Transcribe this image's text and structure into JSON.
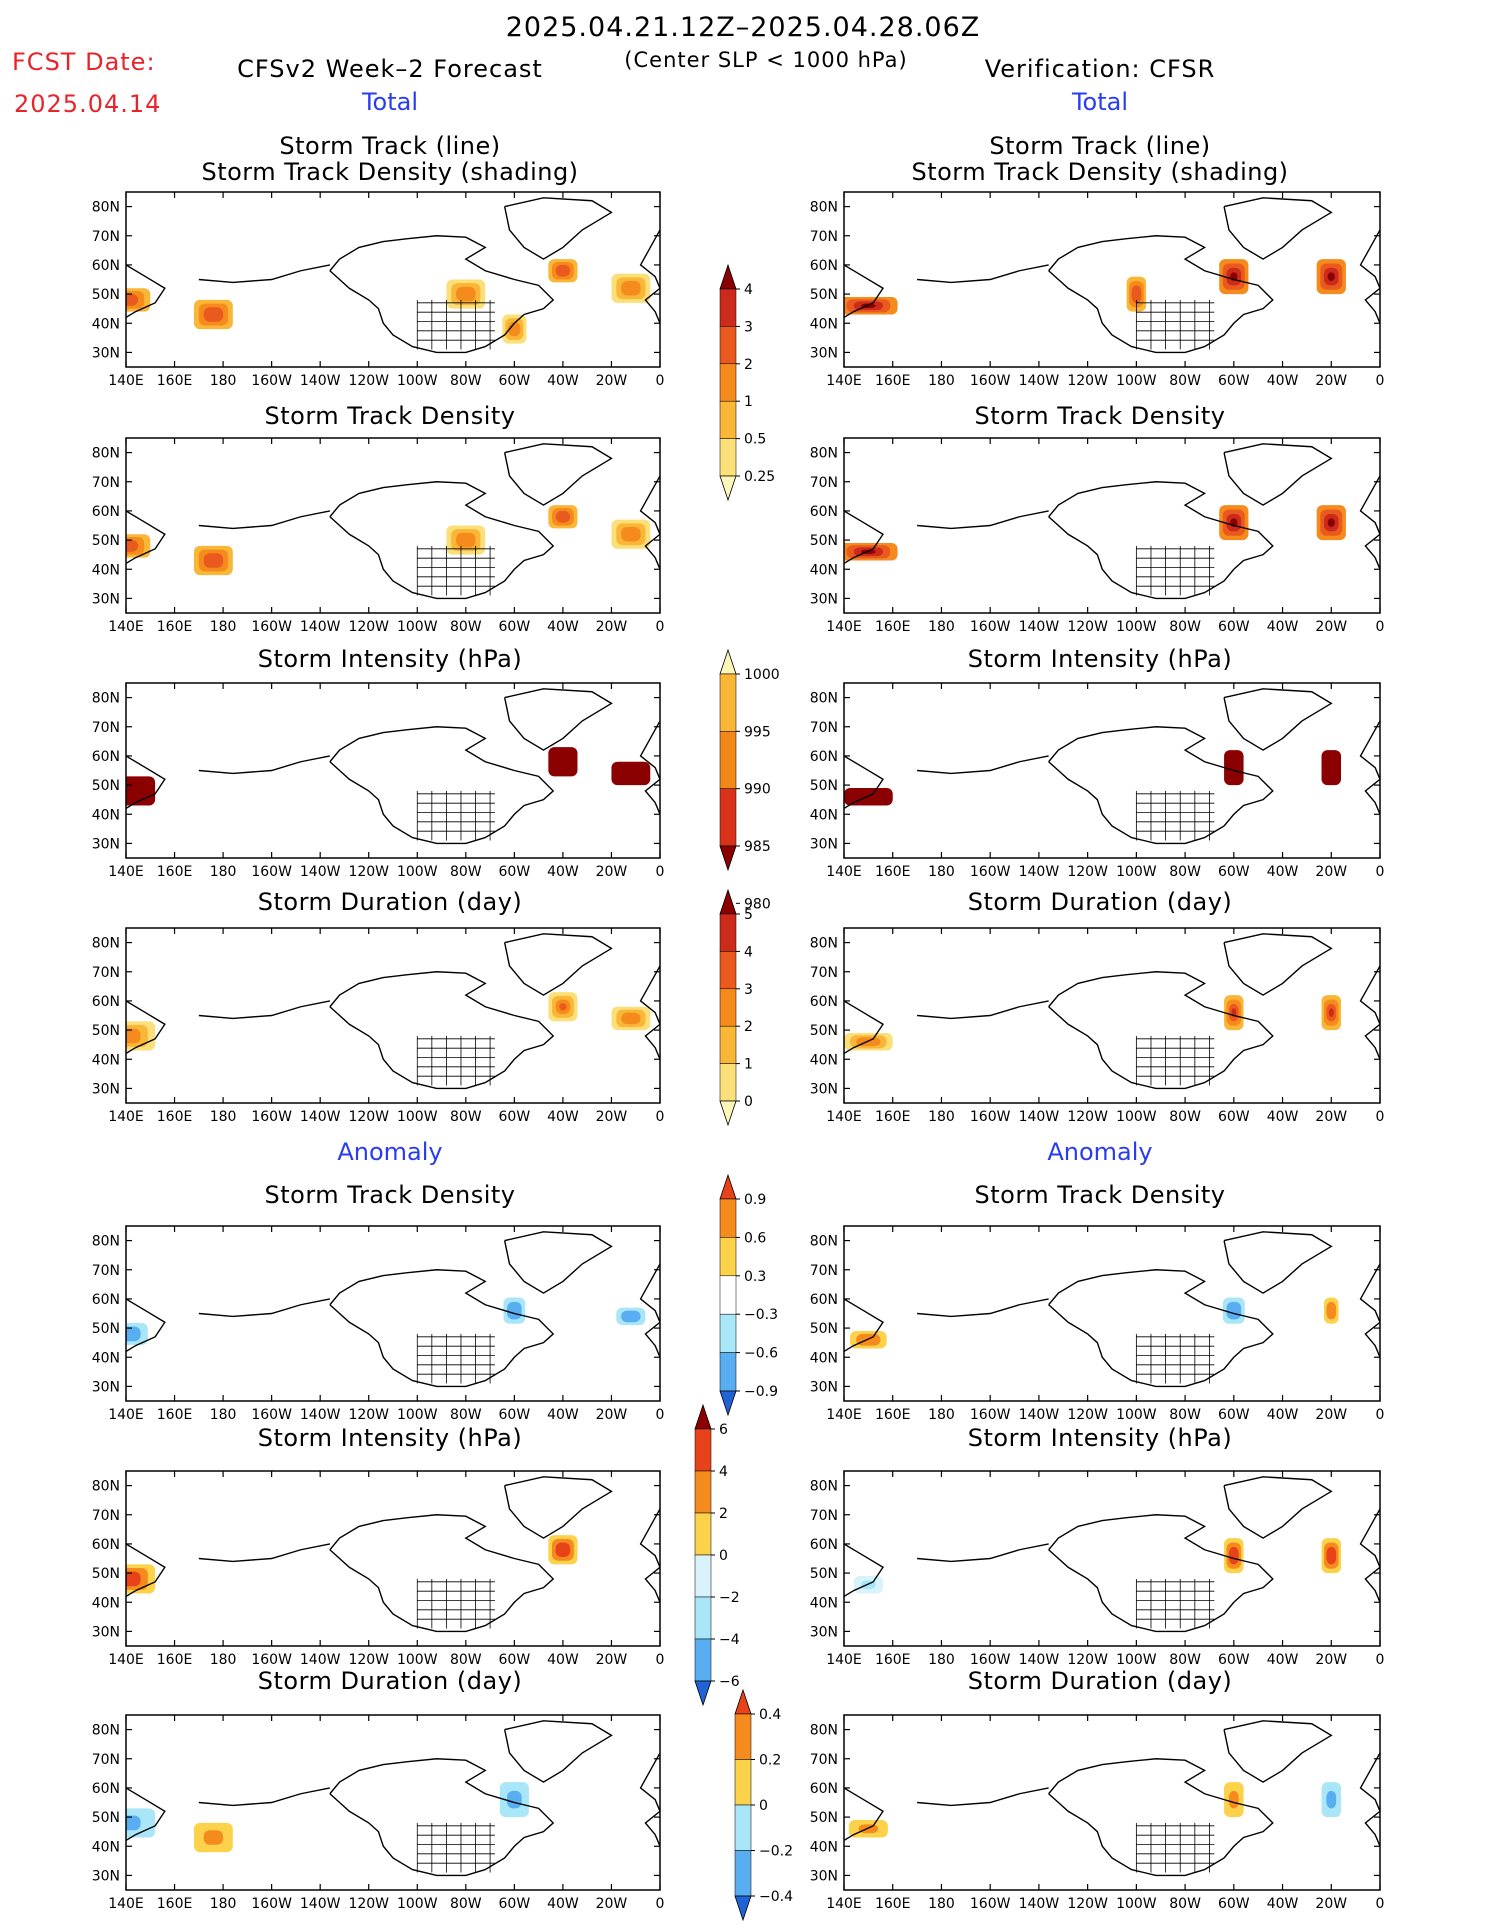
{
  "header": {
    "date_range": "2025.04.21.12Z–2025.04.28.06Z",
    "fcst_label": "FCST Date:",
    "fcst_date": "2025.04.14",
    "model_title": "CFSv2 Week–2 Forecast",
    "center_note": "(Center SLP < 1000 hPa)",
    "verification": "Verification: CFSR"
  },
  "sections": {
    "total": "Total",
    "anomaly": "Anomaly"
  },
  "axes": {
    "lat_labels": [
      "80N",
      "70N",
      "60N",
      "50N",
      "40N",
      "30N"
    ],
    "lon_labels": [
      "140E",
      "160E",
      "180",
      "160W",
      "140W",
      "120W",
      "100W",
      "80W",
      "60W",
      "40W",
      "20W",
      "0"
    ]
  },
  "colorbars": {
    "density_total": {
      "labels": [
        "4",
        "3",
        "2",
        "1",
        "0.5",
        "0.25"
      ],
      "colors": [
        "#8b0000",
        "#cc2a1a",
        "#ea5a1e",
        "#f58b1c",
        "#f9b637",
        "#fbe07a",
        "#fdf6b8"
      ]
    },
    "intensity_total": {
      "labels": [
        "1000",
        "995",
        "990",
        "985",
        "980"
      ],
      "colors": [
        "#fdf6b8",
        "#f9b637",
        "#f0891a",
        "#d8321a",
        "#8b0000"
      ]
    },
    "duration_total": {
      "labels": [
        "5",
        "4",
        "3",
        "2",
        "1",
        "0"
      ],
      "colors": [
        "#8b0000",
        "#cc2a1a",
        "#ea5a1e",
        "#f58b1c",
        "#f9b637",
        "#fbe07a",
        "#fdf6b8"
      ]
    },
    "density_anom": {
      "labels": [
        "0.9",
        "0.6",
        "0.3",
        "−0.3",
        "−0.6",
        "−0.9"
      ],
      "colors": [
        "#e8421a",
        "#f58b1c",
        "#fbd24a",
        "#ffffff",
        "#a8e6f8",
        "#58aef0",
        "#1f63d6"
      ]
    },
    "intensity_anom": {
      "labels": [
        "6",
        "4",
        "2",
        "0",
        "−2",
        "−4",
        "−6"
      ],
      "colors": [
        "#8b0000",
        "#e8421a",
        "#f58b1c",
        "#fbd24a",
        "#d8f3fa",
        "#a8e6f8",
        "#58aef0",
        "#1f63d6"
      ]
    },
    "duration_anom": {
      "labels": [
        "0.4",
        "0.2",
        "0",
        "−0.2",
        "−0.4"
      ],
      "colors": [
        "#e8421a",
        "#f58b1c",
        "#fbd24a",
        "#a8e6f8",
        "#58aef0",
        "#1f63d6"
      ]
    }
  },
  "chart_data": [
    {
      "type": "heatmap",
      "column": "CFSv2 Week–2 Forecast",
      "group": "Total",
      "title": "Storm Track (line) / Storm Track Density (shading)",
      "cbar": "density_total",
      "blobs": [
        [
          0,
          48,
          4,
          10,
          3
        ],
        [
          -6,
          52,
          5,
          8,
          2
        ],
        [
          -20,
          58,
          4,
          6,
          3
        ],
        [
          -40,
          50,
          5,
          8,
          2
        ],
        [
          18,
          43,
          5,
          8,
          3
        ],
        [
          -30,
          38,
          5,
          5,
          2
        ]
      ]
    },
    {
      "type": "heatmap",
      "column": "Verification: CFSR",
      "group": "Total",
      "title": "Storm Track (line) / Storm Track Density (shading)",
      "cbar": "density_total",
      "blobs": [
        [
          5,
          46,
          3,
          12,
          5
        ],
        [
          -10,
          56,
          6,
          6,
          5
        ],
        [
          -30,
          56,
          6,
          6,
          5
        ],
        [
          -50,
          50,
          6,
          4,
          3
        ]
      ]
    },
    {
      "type": "heatmap",
      "column": "CFSv2 Week–2 Forecast",
      "group": "Total",
      "title": "Storm Track Density",
      "cbar": "density_total",
      "blobs": [
        [
          0,
          48,
          4,
          10,
          3
        ],
        [
          -6,
          52,
          5,
          8,
          2
        ],
        [
          -20,
          58,
          4,
          6,
          3
        ],
        [
          -40,
          50,
          5,
          8,
          2
        ],
        [
          18,
          43,
          5,
          8,
          3
        ]
      ]
    },
    {
      "type": "heatmap",
      "column": "Verification: CFSR",
      "group": "Total",
      "title": "Storm Track Density",
      "cbar": "density_total",
      "blobs": [
        [
          5,
          46,
          3,
          12,
          5
        ],
        [
          -10,
          56,
          6,
          6,
          5
        ],
        [
          -30,
          56,
          6,
          6,
          5
        ]
      ]
    },
    {
      "type": "heatmap",
      "column": "CFSv2 Week–2 Forecast",
      "group": "Total",
      "title": "Storm Intensity (hPa)",
      "cbar": "intensity_total",
      "blobs": [
        [
          0,
          48,
          5,
          12,
          1
        ],
        [
          -6,
          54,
          4,
          8,
          1
        ],
        [
          -20,
          58,
          5,
          6,
          1
        ]
      ]
    },
    {
      "type": "heatmap",
      "column": "Verification: CFSR",
      "group": "Total",
      "title": "Storm Intensity (hPa)",
      "cbar": "intensity_total",
      "blobs": [
        [
          5,
          46,
          3,
          10,
          3
        ],
        [
          -10,
          56,
          6,
          4,
          2
        ],
        [
          -30,
          56,
          6,
          4,
          2
        ]
      ]
    },
    {
      "type": "heatmap",
      "column": "CFSv2 Week–2 Forecast",
      "group": "Total",
      "title": "Storm Duration (day)",
      "cbar": "duration_total",
      "blobs": [
        [
          0,
          48,
          5,
          12,
          3
        ],
        [
          -6,
          54,
          4,
          8,
          3
        ],
        [
          -20,
          58,
          5,
          6,
          4
        ]
      ]
    },
    {
      "type": "heatmap",
      "column": "Verification: CFSR",
      "group": "Total",
      "title": "Storm Duration (day)",
      "cbar": "duration_total",
      "blobs": [
        [
          5,
          46,
          3,
          10,
          3
        ],
        [
          -10,
          56,
          6,
          4,
          5
        ],
        [
          -30,
          56,
          6,
          4,
          5
        ]
      ]
    },
    {
      "type": "heatmap",
      "column": "CFSv2 Week–2 Forecast",
      "group": "Anomaly",
      "title": "Storm Track Density",
      "cbar": "density_anom",
      "blobs": [
        [
          0,
          48,
          5,
          12,
          -0.9
        ],
        [
          -6,
          54,
          4,
          8,
          -0.9
        ],
        [
          -30,
          56,
          6,
          6,
          -0.9
        ]
      ]
    },
    {
      "type": "heatmap",
      "column": "Verification: CFSR",
      "group": "Anomaly",
      "title": "Storm Track Density",
      "cbar": "density_anom",
      "blobs": [
        [
          5,
          46,
          4,
          10,
          0.9
        ],
        [
          -10,
          56,
          6,
          4,
          0.9
        ],
        [
          -30,
          56,
          6,
          6,
          -0.9
        ]
      ]
    },
    {
      "type": "heatmap",
      "column": "CFSv2 Week–2 Forecast",
      "group": "Anomaly",
      "title": "Storm Intensity (hPa)",
      "cbar": "intensity_anom",
      "blobs": [
        [
          0,
          48,
          5,
          12,
          6
        ],
        [
          -20,
          58,
          5,
          6,
          6
        ]
      ]
    },
    {
      "type": "heatmap",
      "column": "Verification: CFSR",
      "group": "Anomaly",
      "title": "Storm Intensity (hPa)",
      "cbar": "intensity_anom",
      "blobs": [
        [
          5,
          46,
          3,
          6,
          -4
        ],
        [
          -10,
          56,
          6,
          4,
          6
        ],
        [
          -30,
          56,
          6,
          4,
          6
        ]
      ]
    },
    {
      "type": "heatmap",
      "column": "CFSv2 Week–2 Forecast",
      "group": "Anomaly",
      "title": "Storm Duration (day)",
      "cbar": "duration_anom",
      "blobs": [
        [
          0,
          48,
          5,
          12,
          -0.4
        ],
        [
          -30,
          56,
          6,
          6,
          -0.4
        ],
        [
          18,
          43,
          5,
          8,
          0.4
        ]
      ]
    },
    {
      "type": "heatmap",
      "column": "Verification: CFSR",
      "group": "Anomaly",
      "title": "Storm Duration (day)",
      "cbar": "duration_anom",
      "blobs": [
        [
          5,
          46,
          3,
          8,
          0.4
        ],
        [
          -10,
          56,
          6,
          4,
          -0.4
        ],
        [
          -30,
          56,
          6,
          4,
          0.4
        ]
      ]
    }
  ]
}
